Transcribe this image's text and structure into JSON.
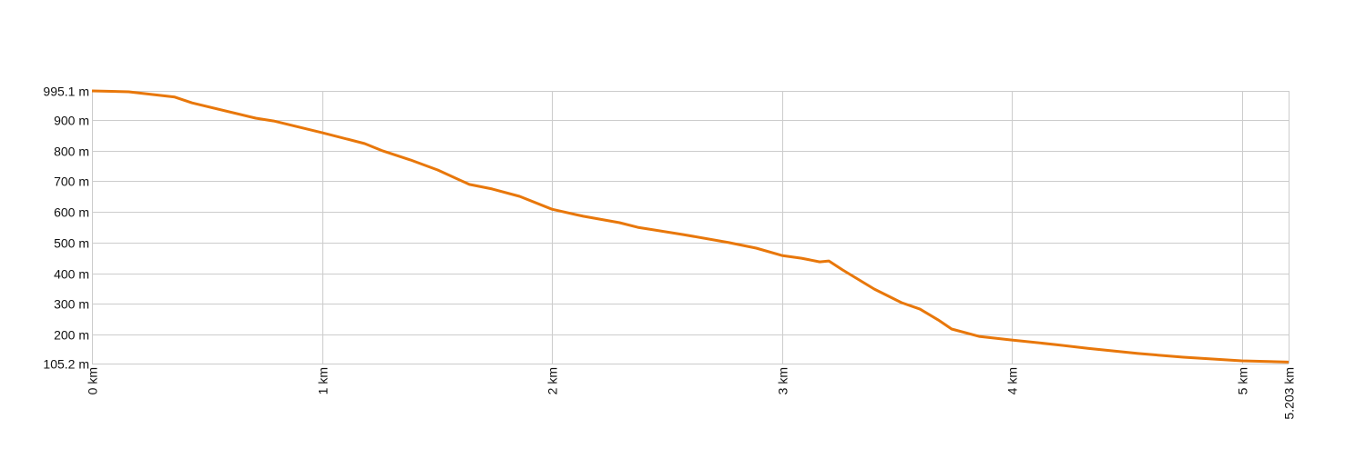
{
  "chart_data": {
    "type": "line",
    "title": "",
    "xlabel": "",
    "ylabel": "",
    "xlim": [
      0,
      5.203
    ],
    "ylim": [
      105.2,
      995.1
    ],
    "grid": true,
    "line_color": "#e8770a",
    "grid_color": "#cccccc",
    "y_ticks": [
      {
        "value": 105.2,
        "label": "105.2 m"
      },
      {
        "value": 200,
        "label": "200 m"
      },
      {
        "value": 300,
        "label": "300 m"
      },
      {
        "value": 400,
        "label": "400 m"
      },
      {
        "value": 500,
        "label": "500 m"
      },
      {
        "value": 600,
        "label": "600 m"
      },
      {
        "value": 700,
        "label": "700 m"
      },
      {
        "value": 800,
        "label": "800 m"
      },
      {
        "value": 900,
        "label": "900 m"
      },
      {
        "value": 995.1,
        "label": "995.1 m"
      }
    ],
    "x_ticks": [
      {
        "value": 0,
        "label": "0 km"
      },
      {
        "value": 1,
        "label": "1 km"
      },
      {
        "value": 2,
        "label": "2 km"
      },
      {
        "value": 3,
        "label": "3 km"
      },
      {
        "value": 4,
        "label": "4 km"
      },
      {
        "value": 5,
        "label": "5 km"
      },
      {
        "value": 5.203,
        "label": "5.203 km"
      }
    ],
    "series": [
      {
        "x": [
          0,
          0.16,
          0.36,
          0.435,
          0.712,
          0.79,
          1.0,
          1.186,
          1.265,
          1.384,
          1.503,
          1.641,
          1.74,
          1.859,
          2.0,
          2.136,
          2.294,
          2.373,
          2.571,
          2.769,
          2.888,
          3.0,
          3.085,
          3.164,
          3.204,
          3.263,
          3.402,
          3.52,
          3.6,
          3.679,
          3.738,
          3.857,
          4.0,
          4.193,
          4.33,
          4.548,
          4.746,
          5.0,
          5.203
        ],
        "y": [
          995,
          992,
          975,
          956,
          906,
          897,
          859,
          823,
          799,
          770,
          737,
          690,
          675,
          651,
          609,
          586,
          565,
          550,
          526,
          500,
          482,
          458,
          449,
          437,
          440,
          411,
          348,
          304,
          283,
          248,
          218,
          194,
          182,
          167,
          155,
          138,
          126,
          114,
          110
        ]
      }
    ]
  }
}
